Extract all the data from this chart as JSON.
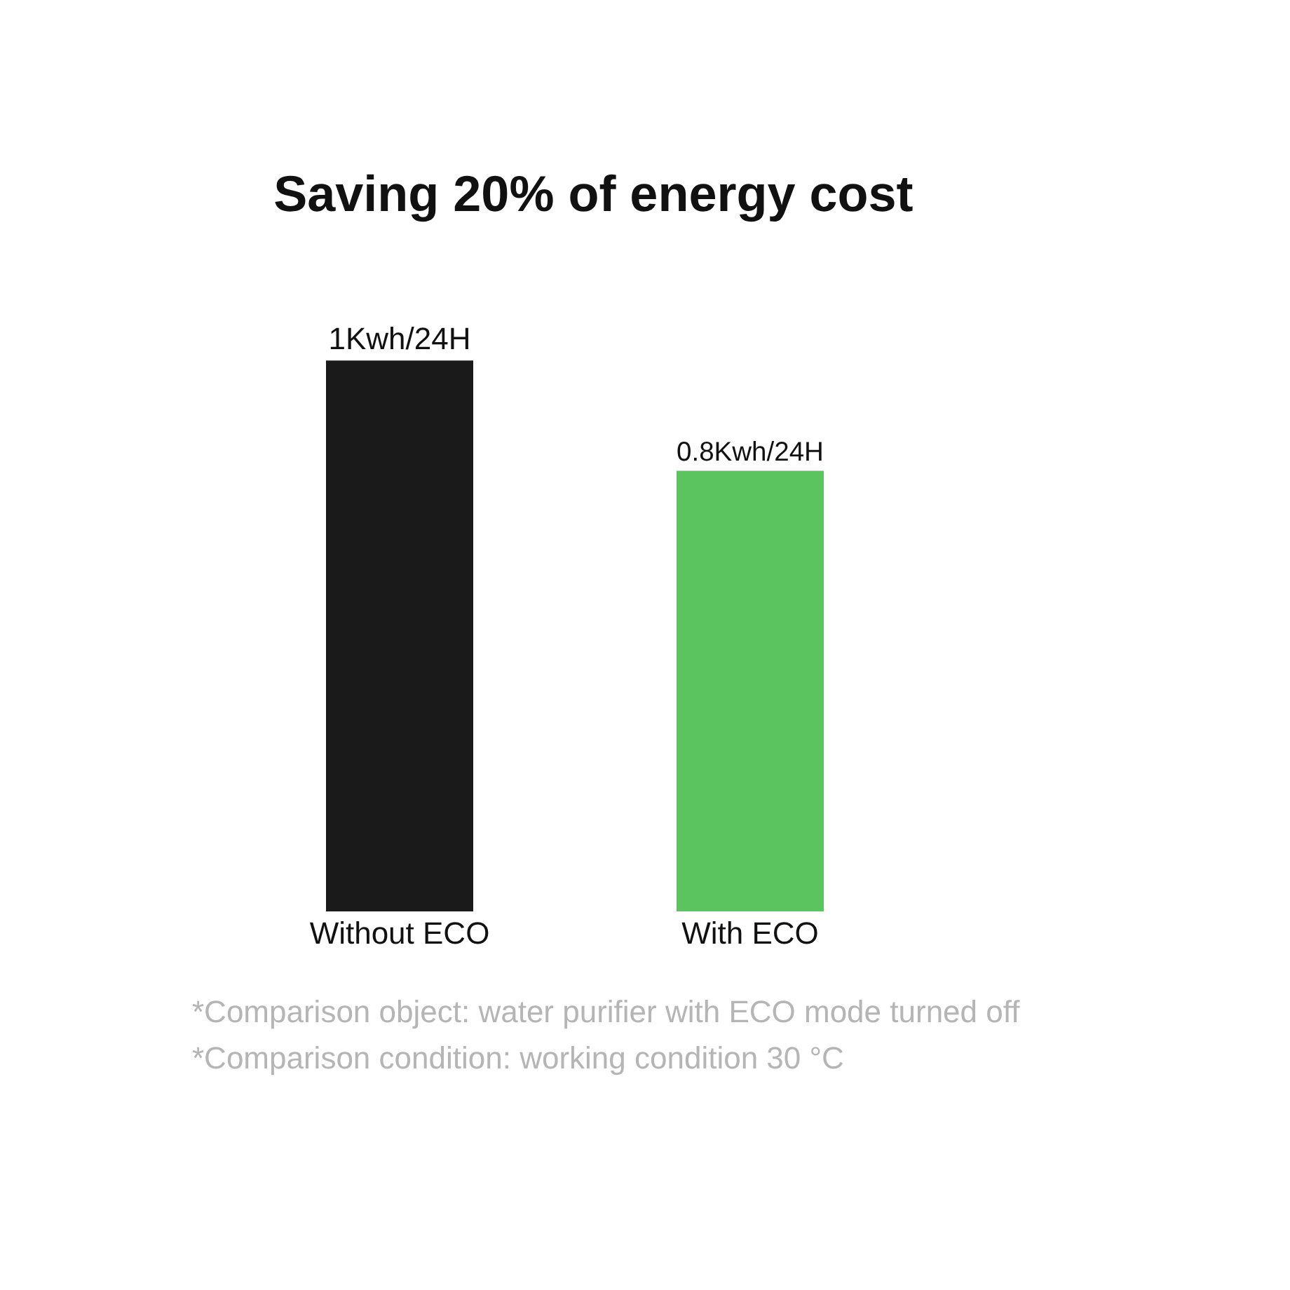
{
  "chart_data": {
    "type": "bar",
    "title": "Saving 20% of energy cost",
    "categories": [
      "Without ECO",
      "With ECO"
    ],
    "values": [
      1,
      0.8
    ],
    "colors": [
      "#1a1a1a",
      "#5cc45e"
    ],
    "value_labels": [
      "1Kwh/24H",
      "0.8Kwh/24H"
    ],
    "annotations": [
      "*Comparison object: water purifier with ECO mode turned off",
      "*Comparison condition: working condition 30 °C"
    ]
  }
}
